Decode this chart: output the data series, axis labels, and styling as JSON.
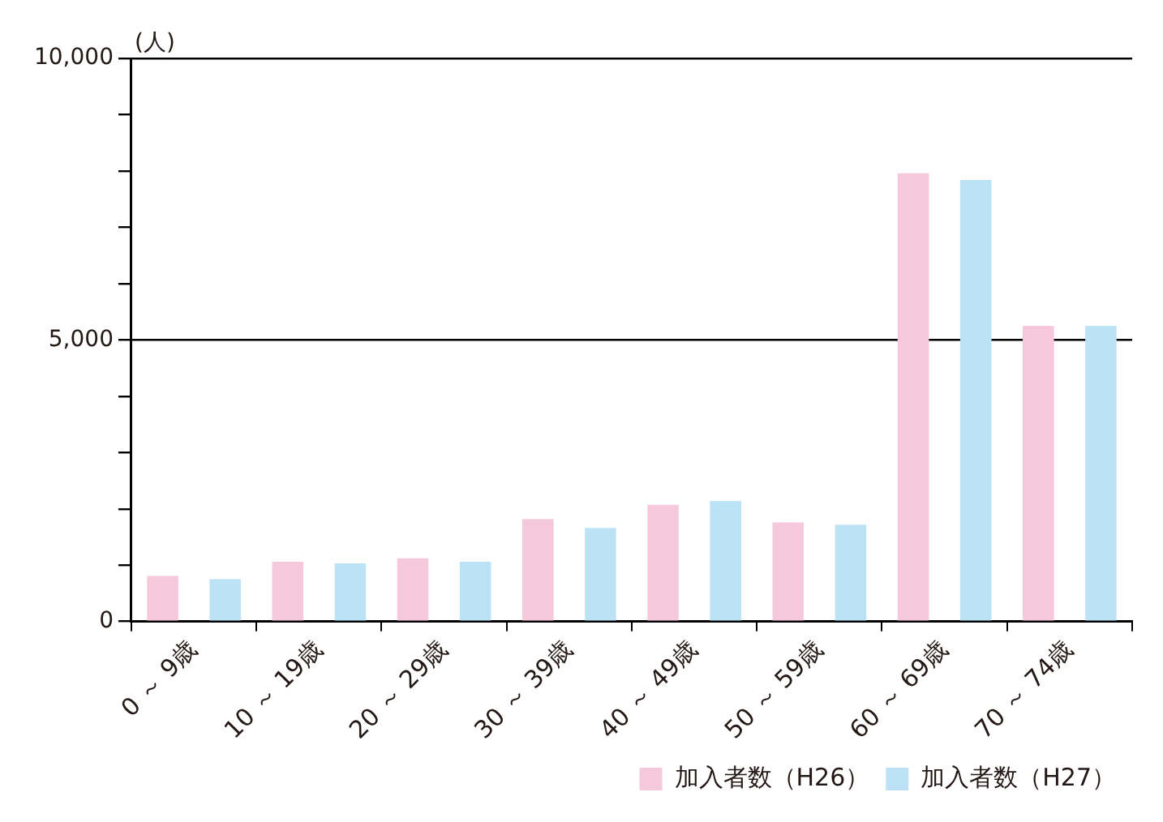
{
  "chart_data": {
    "type": "bar",
    "ylabel": "(人)",
    "categories": [
      "0 ～ 9歳",
      "10 ～ 19歳",
      "20 ～ 29歳",
      "30 ～ 39歳",
      "40 ～ 49歳",
      "50 ～ 59歳",
      "60 ～ 69歳",
      "70 ～ 74歳"
    ],
    "series": [
      {
        "name": "加入者数（H26）",
        "color": "#f5c8dc",
        "values": [
          810,
          1060,
          1120,
          1820,
          2070,
          1760,
          7960,
          5250
        ]
      },
      {
        "name": "加入者数（H27）",
        "color": "#bce2f6",
        "values": [
          750,
          1030,
          1060,
          1660,
          2140,
          1720,
          7840,
          5250
        ]
      }
    ],
    "ylim": [
      0,
      10000
    ],
    "yticks": [
      0,
      {
        "value": 1000,
        "label": null
      },
      {
        "value": 2000,
        "label": null
      },
      {
        "value": 3000,
        "label": null
      },
      {
        "value": 4000,
        "label": null
      },
      {
        "value": 5000,
        "label": "5,000"
      },
      {
        "value": 6000,
        "label": null
      },
      {
        "value": 7000,
        "label": null
      },
      {
        "value": 8000,
        "label": null
      },
      {
        "value": 9000,
        "label": null
      },
      {
        "value": 10000,
        "label": "10,000"
      }
    ],
    "grid": "y",
    "legend": "bottom right"
  }
}
